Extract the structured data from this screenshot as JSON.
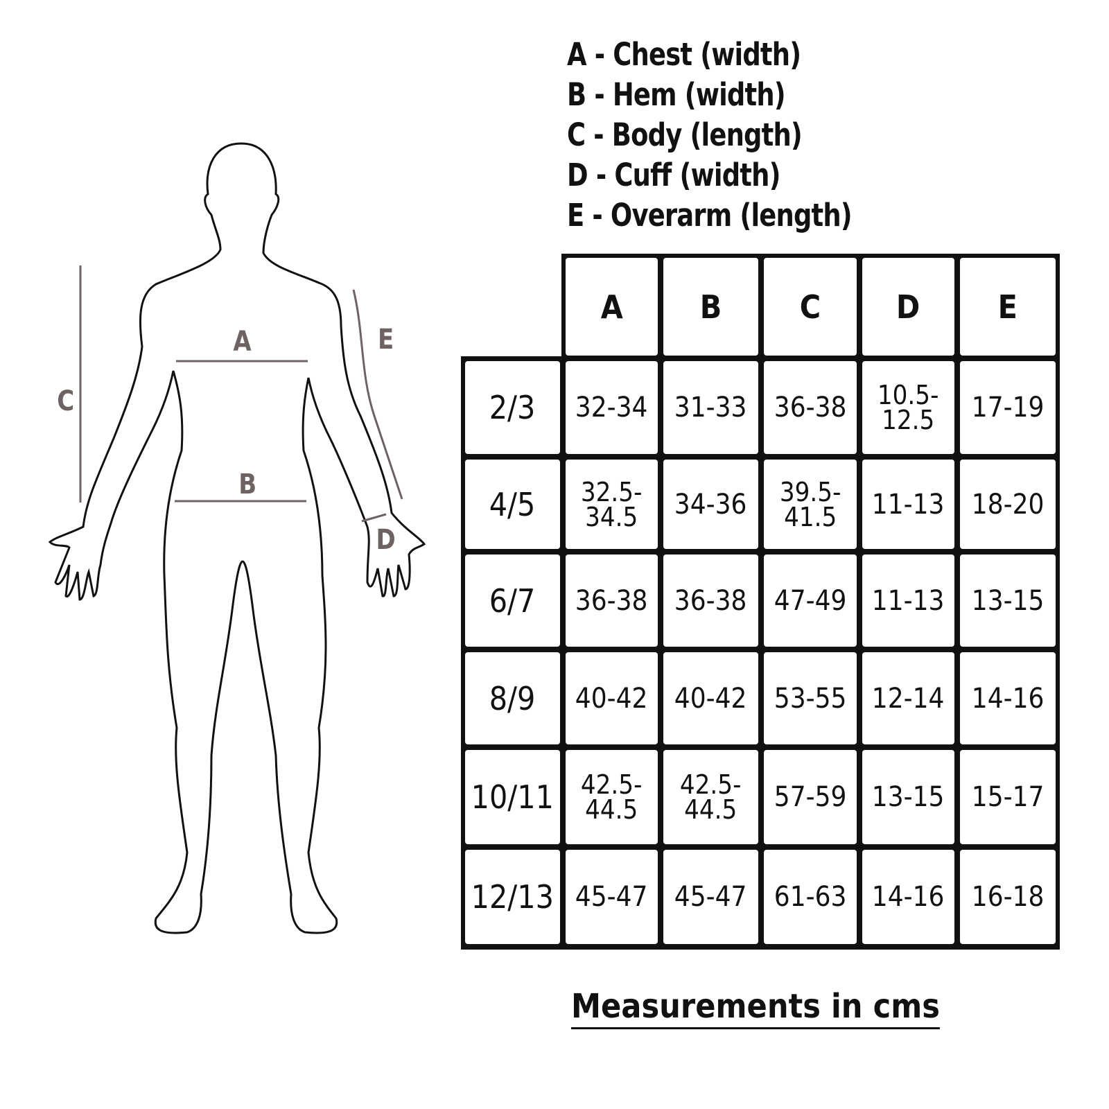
{
  "legend": [
    "A - Chest (width)",
    "B - Hem (width)",
    "C - Body (length)",
    "D - Cuff (width)",
    "E - Overarm (length)"
  ],
  "figure_labels": {
    "a": "A",
    "b": "B",
    "c": "C",
    "d": "D",
    "e": "E"
  },
  "colors": {
    "measure_lines": "#6e6262",
    "grid": "#111111"
  },
  "table": {
    "columns": [
      "A",
      "B",
      "C",
      "D",
      "E"
    ],
    "rows": [
      {
        "size": "2/3",
        "values": [
          "32-34",
          "31-33",
          "36-38",
          "10.5-\n12.5",
          "17-19"
        ]
      },
      {
        "size": "4/5",
        "values": [
          "32.5-\n34.5",
          "34-36",
          "39.5-\n41.5",
          "11-13",
          "18-20"
        ]
      },
      {
        "size": "6/7",
        "values": [
          "36-38",
          "36-38",
          "47-49",
          "11-13",
          "13-15"
        ]
      },
      {
        "size": "8/9",
        "values": [
          "40-42",
          "40-42",
          "53-55",
          "12-14",
          "14-16"
        ]
      },
      {
        "size": "10/11",
        "values": [
          "42.5-\n44.5",
          "42.5-\n44.5",
          "57-59",
          "13-15",
          "15-17"
        ]
      },
      {
        "size": "12/13",
        "values": [
          "45-47",
          "45-47",
          "61-63",
          "14-16",
          "16-18"
        ]
      }
    ]
  },
  "footer": "Measurements in cms"
}
